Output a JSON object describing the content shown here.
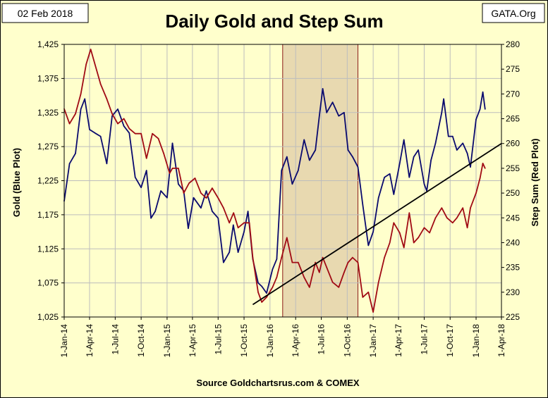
{
  "header": {
    "date": "02 Feb 2018",
    "title": "Daily Gold and Step Sum",
    "brand": "GATA.Org"
  },
  "source": "Source Goldchartsrus.com & COMEX",
  "colors": {
    "gold": "#0a0a6e",
    "step_sum": "#a00a14",
    "shade": "#e8d9b0",
    "plot_bg": "#ffffcc",
    "trend": "#000000"
  },
  "chart_data": {
    "type": "line",
    "title": "Daily Gold and Step Sum",
    "ylabel_left": "Gold   (Blue Plot)",
    "ylabel_right": "Step Sum   (Red Plot)",
    "xlim": [
      "2014-01-01",
      "2018-04-01"
    ],
    "ylim_left": [
      1025,
      1425
    ],
    "ylim_right": [
      225,
      280
    ],
    "yticks_left": [
      "1,025",
      "1,075",
      "1,125",
      "1,175",
      "1,225",
      "1,275",
      "1,325",
      "1,375",
      "1,425"
    ],
    "yticks_right": [
      "225",
      "230",
      "235",
      "240",
      "245",
      "250",
      "255",
      "260",
      "265",
      "270",
      "275",
      "280"
    ],
    "xticks": [
      "1-Jan-14",
      "1-Apr-14",
      "1-Jul-14",
      "1-Oct-14",
      "1-Jan-15",
      "1-Apr-15",
      "1-Jul-15",
      "1-Oct-15",
      "1-Jan-16",
      "1-Apr-16",
      "1-Jul-16",
      "1-Oct-16",
      "1-Jan-17",
      "1-Apr-17",
      "1-Jul-17",
      "1-Oct-17",
      "1-Jan-18",
      "1-Apr-18"
    ],
    "grid": true,
    "shaded_period": [
      "2016-02-15",
      "2016-11-08"
    ],
    "trendline": {
      "axis": "right",
      "start": [
        "2015-11-01",
        227.5
      ],
      "end": [
        "2018-04-01",
        260.0
      ]
    },
    "series": [
      {
        "name": "Gold",
        "axis": "left",
        "x": [
          "2014-01-01",
          "2014-01-20",
          "2014-02-10",
          "2014-03-01",
          "2014-03-15",
          "2014-04-01",
          "2014-04-20",
          "2014-05-10",
          "2014-06-01",
          "2014-06-20",
          "2014-07-10",
          "2014-08-01",
          "2014-08-20",
          "2014-09-10",
          "2014-10-01",
          "2014-10-20",
          "2014-11-05",
          "2014-11-20",
          "2014-12-10",
          "2015-01-01",
          "2015-01-20",
          "2015-02-10",
          "2015-03-01",
          "2015-03-17",
          "2015-04-05",
          "2015-05-01",
          "2015-05-20",
          "2015-06-10",
          "2015-07-01",
          "2015-07-20",
          "2015-08-10",
          "2015-08-24",
          "2015-09-10",
          "2015-10-01",
          "2015-10-15",
          "2015-11-01",
          "2015-11-20",
          "2015-12-03",
          "2015-12-20",
          "2016-01-10",
          "2016-01-25",
          "2016-02-11",
          "2016-03-01",
          "2016-03-20",
          "2016-04-10",
          "2016-05-01",
          "2016-05-20",
          "2016-06-10",
          "2016-06-24",
          "2016-07-06",
          "2016-07-20",
          "2016-08-10",
          "2016-09-01",
          "2016-09-20",
          "2016-10-04",
          "2016-10-20",
          "2016-11-08",
          "2016-11-25",
          "2016-12-15",
          "2017-01-01",
          "2017-01-20",
          "2017-02-10",
          "2017-03-01",
          "2017-03-15",
          "2017-04-05",
          "2017-04-20",
          "2017-05-09",
          "2017-05-25",
          "2017-06-10",
          "2017-07-01",
          "2017-07-10",
          "2017-07-25",
          "2017-08-10",
          "2017-09-01",
          "2017-09-08",
          "2017-09-25",
          "2017-10-10",
          "2017-10-25",
          "2017-11-15",
          "2017-12-01",
          "2017-12-12",
          "2018-01-01",
          "2018-01-15",
          "2018-01-25",
          "2018-02-02"
        ],
        "values": [
          1195,
          1250,
          1265,
          1330,
          1345,
          1300,
          1295,
          1290,
          1250,
          1320,
          1330,
          1305,
          1295,
          1230,
          1215,
          1240,
          1170,
          1180,
          1210,
          1200,
          1280,
          1220,
          1210,
          1155,
          1200,
          1185,
          1210,
          1180,
          1170,
          1105,
          1120,
          1160,
          1120,
          1150,
          1180,
          1110,
          1075,
          1070,
          1060,
          1095,
          1110,
          1240,
          1260,
          1220,
          1240,
          1285,
          1255,
          1270,
          1320,
          1360,
          1325,
          1340,
          1320,
          1325,
          1270,
          1260,
          1245,
          1190,
          1130,
          1150,
          1200,
          1230,
          1235,
          1205,
          1250,
          1285,
          1230,
          1260,
          1270,
          1220,
          1210,
          1255,
          1280,
          1325,
          1345,
          1290,
          1290,
          1270,
          1280,
          1265,
          1245,
          1315,
          1330,
          1355,
          1330
        ]
      },
      {
        "name": "Step Sum",
        "axis": "right",
        "x": [
          "2014-01-01",
          "2014-01-20",
          "2014-02-10",
          "2014-03-01",
          "2014-03-20",
          "2014-04-05",
          "2014-04-20",
          "2014-05-10",
          "2014-06-01",
          "2014-06-20",
          "2014-07-10",
          "2014-08-01",
          "2014-08-20",
          "2014-09-10",
          "2014-10-01",
          "2014-10-20",
          "2014-11-10",
          "2014-12-01",
          "2014-12-20",
          "2015-01-10",
          "2015-01-20",
          "2015-02-10",
          "2015-03-01",
          "2015-03-20",
          "2015-04-10",
          "2015-05-01",
          "2015-05-20",
          "2015-06-10",
          "2015-07-01",
          "2015-07-20",
          "2015-08-10",
          "2015-08-25",
          "2015-09-10",
          "2015-10-01",
          "2015-10-20",
          "2015-11-01",
          "2015-11-20",
          "2015-12-03",
          "2015-12-20",
          "2016-01-10",
          "2016-01-25",
          "2016-02-11",
          "2016-03-01",
          "2016-03-20",
          "2016-04-10",
          "2016-05-01",
          "2016-05-20",
          "2016-06-10",
          "2016-06-24",
          "2016-07-06",
          "2016-07-20",
          "2016-08-10",
          "2016-09-01",
          "2016-09-20",
          "2016-10-04",
          "2016-10-20",
          "2016-11-08",
          "2016-11-25",
          "2016-12-15",
          "2017-01-01",
          "2017-01-20",
          "2017-02-10",
          "2017-03-01",
          "2017-03-15",
          "2017-04-05",
          "2017-04-20",
          "2017-05-09",
          "2017-05-25",
          "2017-06-10",
          "2017-07-01",
          "2017-07-20",
          "2017-08-10",
          "2017-09-01",
          "2017-09-20",
          "2017-10-10",
          "2017-10-25",
          "2017-11-15",
          "2017-12-01",
          "2017-12-12",
          "2018-01-01",
          "2018-01-15",
          "2018-01-25",
          "2018-02-02"
        ],
        "values": [
          267,
          264,
          266,
          270,
          276,
          279,
          276,
          272,
          269,
          266,
          264,
          265,
          263,
          262,
          262,
          257,
          262,
          261,
          258,
          254,
          255,
          255,
          250,
          252,
          253,
          250,
          249,
          251,
          249,
          247,
          244,
          246,
          243,
          244,
          244,
          237,
          230,
          228,
          229,
          231,
          233,
          237,
          241,
          236,
          236,
          233,
          231,
          236,
          234,
          237,
          235,
          232,
          231,
          234,
          236,
          237,
          236,
          229,
          230,
          226,
          232,
          237,
          240,
          244,
          242,
          239,
          246,
          240,
          241,
          243,
          242,
          245,
          247,
          245,
          244,
          245,
          247,
          243,
          247,
          250,
          253,
          256,
          255
        ]
      }
    ]
  }
}
